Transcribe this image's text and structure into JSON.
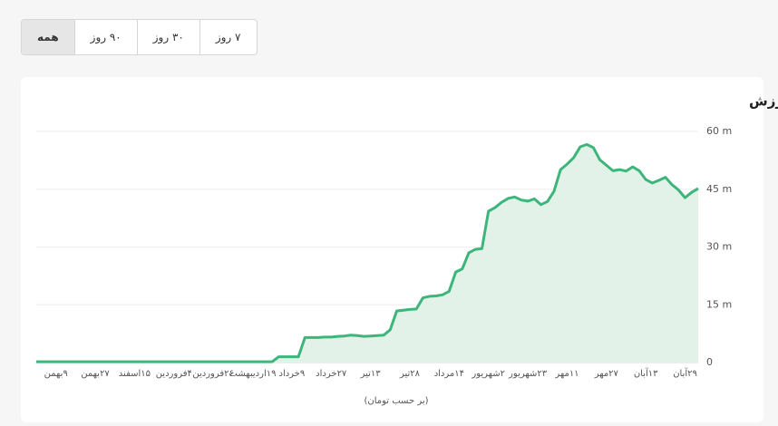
{
  "tabs": [
    "۷ روز",
    "۳۰ روز",
    "۹۰ روز",
    "همه"
  ],
  "active_tab": 3,
  "chart_data": {
    "type": "area",
    "title": "تاریخچه ارزش",
    "x_label": "(بر حسب تومان)",
    "categories": [
      null,
      null,
      null,
      "۹بهمن",
      null,
      null,
      null,
      null,
      null,
      "۲۷بهمن",
      null,
      null,
      null,
      null,
      null,
      "۱۵اسفند",
      null,
      null,
      null,
      null,
      null,
      "۴فروردین",
      null,
      null,
      null,
      null,
      null,
      "۲۶فروردین",
      null,
      null,
      null,
      null,
      null,
      "۱۹اردیبهشت",
      null,
      null,
      null,
      null,
      null,
      "۹خرداد",
      null,
      null,
      null,
      null,
      null,
      "۲۷خرداد",
      null,
      null,
      null,
      null,
      null,
      "۱۳تیر",
      null,
      null,
      null,
      null,
      null,
      "۲۸تیر",
      null,
      null,
      null,
      null,
      null,
      "۱۴مرداد",
      null,
      null,
      null,
      null,
      null,
      "۲شهریور",
      null,
      null,
      null,
      null,
      null,
      "۲۳شهریور",
      null,
      null,
      null,
      null,
      null,
      "۱۱مهر",
      null,
      null,
      null,
      null,
      null,
      "۲۷مهر",
      null,
      null,
      null,
      null,
      null,
      "۱۳آبان",
      null,
      null,
      null,
      null,
      null,
      "۲۹آبان",
      null,
      null
    ],
    "values": [
      0.2,
      0.2,
      0.2,
      0.2,
      0.2,
      0.2,
      0.2,
      0.2,
      0.2,
      0.2,
      0.2,
      0.2,
      0.2,
      0.2,
      0.2,
      0.2,
      0.2,
      0.2,
      0.2,
      0.2,
      0.2,
      0.2,
      0.2,
      0.2,
      0.2,
      0.2,
      0.2,
      0.2,
      0.2,
      0.2,
      0.2,
      0.2,
      0.2,
      0.2,
      0.2,
      0.2,
      0.2,
      1.5,
      1.5,
      1.5,
      1.5,
      6.5,
      6.5,
      6.5,
      6.6,
      6.6,
      6.8,
      6.9,
      7.1,
      7.0,
      6.8,
      6.9,
      7.0,
      7.1,
      8.5,
      13.4,
      13.6,
      13.8,
      13.9,
      16.8,
      17.2,
      17.3,
      17.6,
      18.5,
      23.5,
      24.3,
      28.5,
      29.4,
      29.6,
      39.3,
      40.2,
      41.6,
      42.6,
      43.0,
      42.2,
      41.9,
      42.5,
      41.0,
      41.8,
      44.5,
      50.1,
      51.5,
      53.2,
      56.0,
      56.6,
      55.8,
      52.6,
      51.2,
      49.8,
      50.1,
      49.7,
      50.8,
      49.8,
      47.5,
      46.6,
      47.3,
      48.1,
      46.2,
      44.8,
      42.8,
      44.2,
      45.2
    ],
    "color": "#3db57b",
    "fill_color": "#e2f2e9",
    "ylim": [
      0,
      60
    ],
    "yticks": [
      0,
      {
        "value": 15,
        "label": "15 m"
      },
      {
        "value": 30,
        "label": "30 m"
      },
      {
        "value": 45,
        "label": "45 m"
      },
      {
        "value": 60,
        "label": "60 m"
      }
    ],
    "grid": true
  }
}
